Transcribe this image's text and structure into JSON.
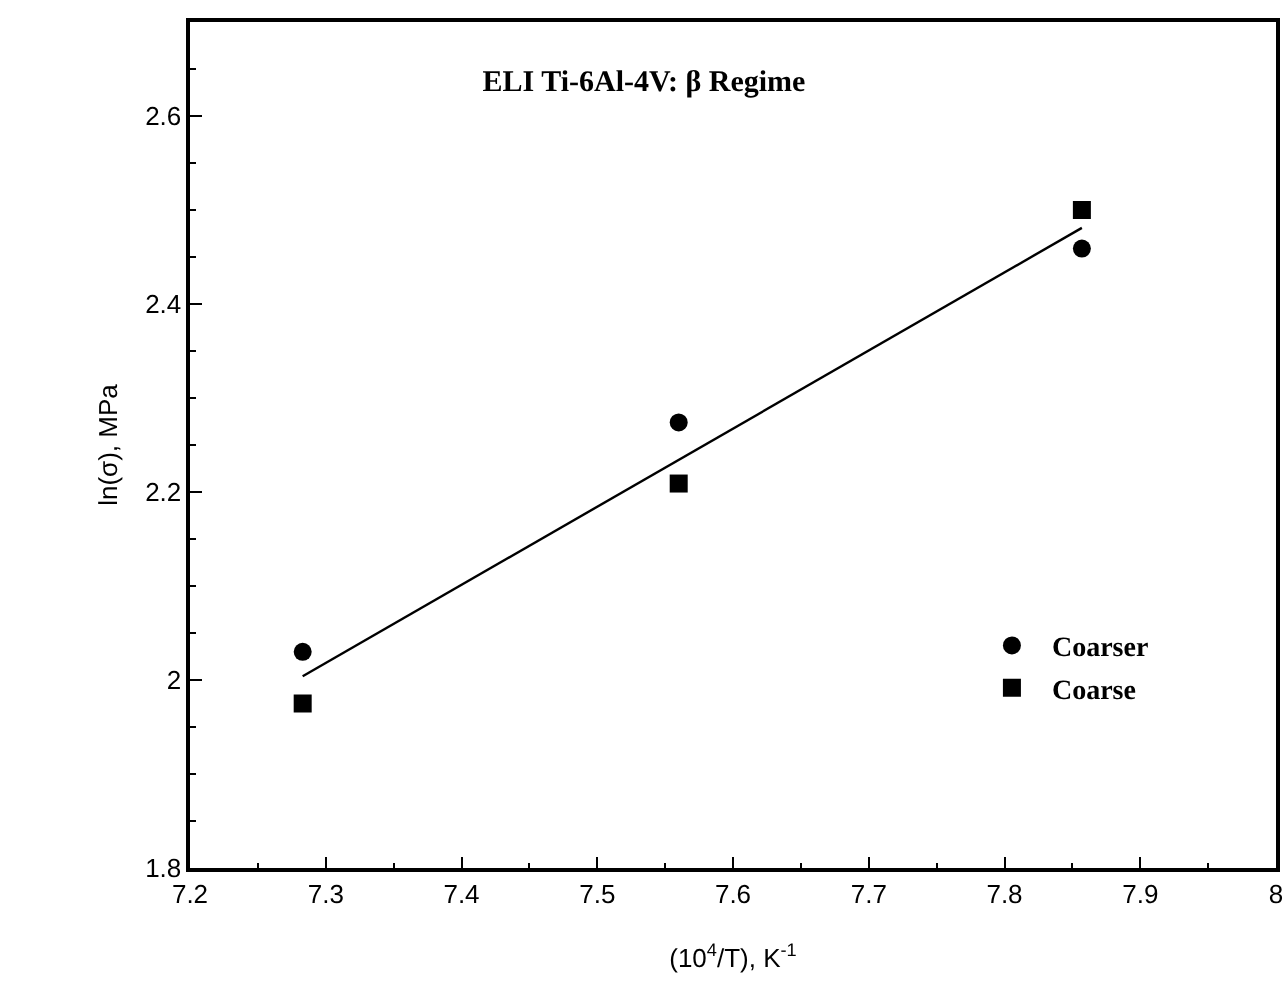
{
  "chart_data": {
    "type": "scatter",
    "title": "ELI Ti-6Al-4V: β Regime",
    "xlabel": "(10$^{4}$/T), K$^{-1}$",
    "ylabel": "ln(σ), MPa",
    "series": [
      {
        "name": "Coarser",
        "color": "#000000",
        "marker": "circle",
        "x": [
          7.283,
          7.56,
          7.857
        ],
        "values": [
          2.03,
          2.274,
          2.459
        ]
      },
      {
        "name": "Coarse",
        "color": "#000000",
        "marker": "square",
        "x": [
          7.283,
          7.56,
          7.857
        ],
        "values": [
          1.975,
          2.209,
          2.5
        ]
      },
      {
        "type": "line",
        "color": "#000000",
        "marker": "none",
        "line_style": "solid",
        "x": [
          7.283,
          7.857
        ],
        "values": [
          2.004,
          2.481
        ]
      }
    ],
    "xlim": [
      7.2,
      8.0
    ],
    "xticks": [
      7.2,
      7.3,
      7.4,
      7.5,
      7.6,
      7.7,
      7.8,
      7.9,
      {
        "value": 8.0,
        "label": "8"
      }
    ],
    "ylim": [
      1.8,
      2.7
    ],
    "yticks": [
      1.8,
      2,
      2.2,
      2.4,
      2.6
    ],
    "grid": false,
    "legend": "bottom right"
  }
}
